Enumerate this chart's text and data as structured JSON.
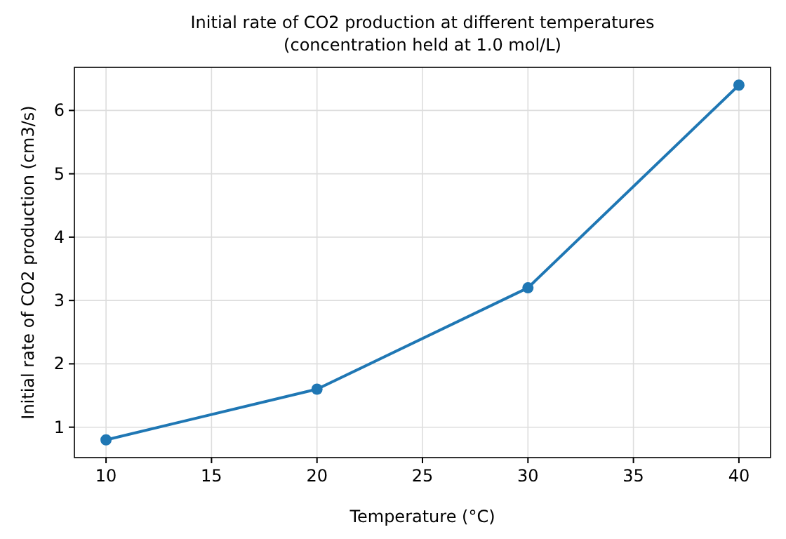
{
  "chart_data": {
    "type": "line",
    "title": "Initial rate of CO2 production at different temperatures\n(concentration held at 1.0 mol/L)",
    "xlabel": "Temperature (°C)",
    "ylabel": "Initial rate of CO2 production (cm3/s)",
    "x": [
      10,
      20,
      30,
      40
    ],
    "series": [
      {
        "color": "#1f77b4",
        "values": [
          0.8,
          1.6,
          3.2,
          6.4
        ]
      }
    ],
    "xlim": [
      8.5,
      41.5
    ],
    "xticks": [
      10,
      15,
      20,
      25,
      30,
      35,
      40
    ],
    "ylim": [
      0.52,
      6.68
    ],
    "yticks": [
      1,
      2,
      3,
      4,
      5,
      6
    ],
    "grid": true,
    "marker": "circle",
    "line_style": "solid"
  }
}
